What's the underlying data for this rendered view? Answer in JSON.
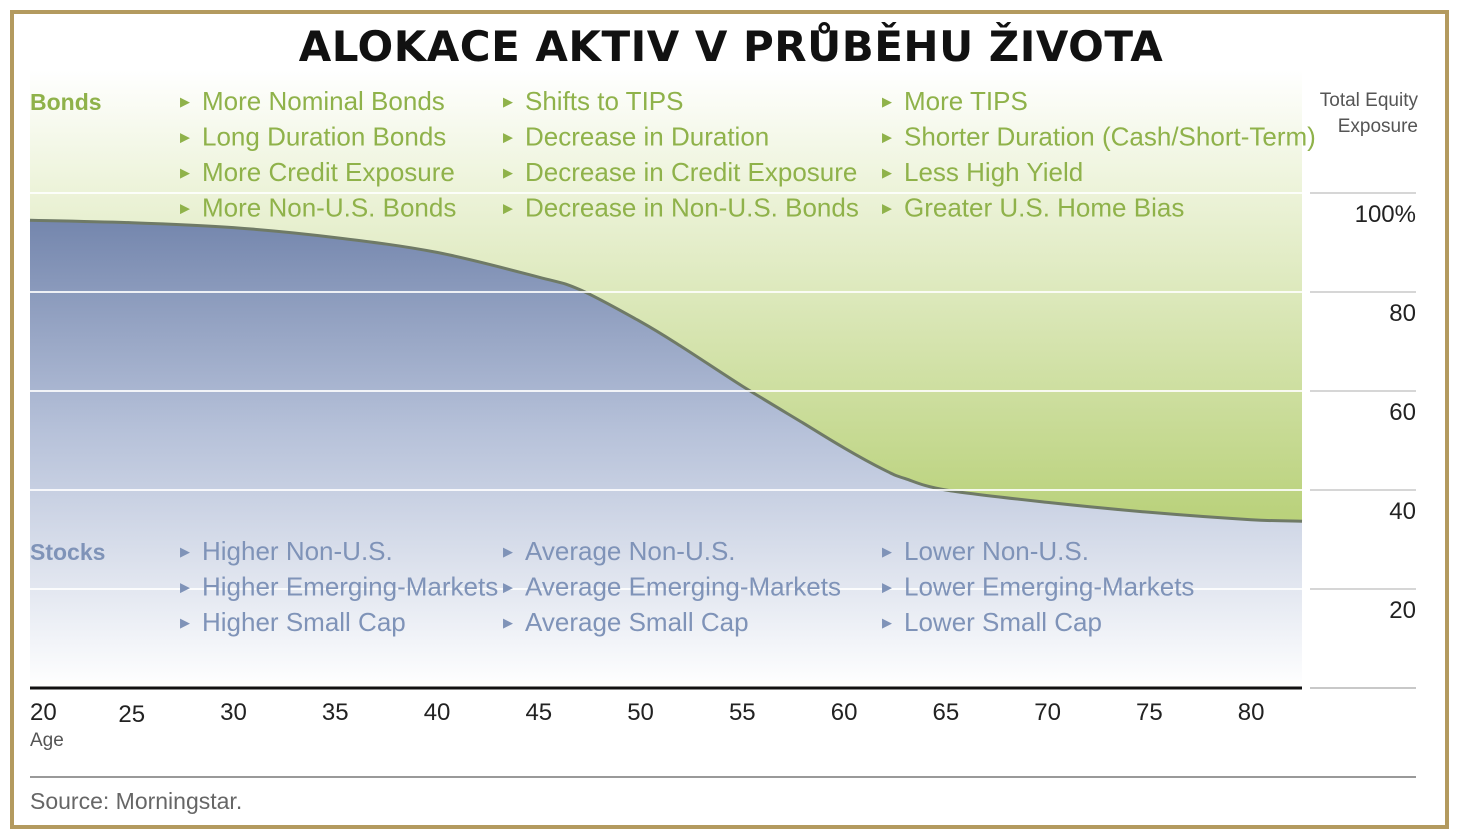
{
  "title": "ALOKACE AKTIV V PRŮBĚHU ŽIVOTA",
  "source": "Source: Morningstar.",
  "colors": {
    "bonds_text": "#8fb24a",
    "stocks_text": "#7f93b8",
    "border": "#b39a5f"
  },
  "chart_data": {
    "type": "area",
    "xlabel": "Age",
    "ylabel": "Total Equity Exposure",
    "x_ticks": [
      20,
      25,
      30,
      35,
      40,
      45,
      50,
      55,
      60,
      65,
      70,
      75,
      80
    ],
    "y_ticks": [
      {
        "value": 100,
        "label": "100%"
      },
      {
        "value": 80,
        "label": "80"
      },
      {
        "value": 60,
        "label": "60"
      },
      {
        "value": 40,
        "label": "40"
      },
      {
        "value": 20,
        "label": "20"
      }
    ],
    "xlim": [
      20,
      82.5
    ],
    "ylim": [
      0,
      100
    ],
    "x": [
      20,
      25,
      30,
      35,
      40,
      45,
      47,
      50,
      52,
      55,
      58,
      60,
      62,
      63,
      65,
      70,
      75,
      80,
      82.5
    ],
    "equity": [
      94.5,
      94,
      93,
      91,
      88,
      83,
      80.5,
      74,
      69,
      61,
      53.5,
      48.5,
      44,
      42.3,
      40,
      37.5,
      35.5,
      34,
      33.7
    ],
    "region_labels": {
      "bonds": "Bonds",
      "stocks": "Stocks"
    },
    "bond_notes": [
      [
        "More Nominal Bonds",
        "Long Duration Bonds",
        "More Credit Exposure",
        "More Non-U.S. Bonds"
      ],
      [
        "Shifts to TIPS",
        "Decrease in Duration",
        "Decrease in Credit Exposure",
        "Decrease in Non-U.S. Bonds"
      ],
      [
        "More TIPS",
        "Shorter Duration (Cash/Short-Term)",
        "Less High Yield",
        "Greater U.S. Home Bias"
      ]
    ],
    "stock_notes": [
      [
        "Higher Non-U.S.",
        "Higher Emerging-Markets",
        "Higher Small Cap"
      ],
      [
        "Average Non-U.S.",
        "Average Emerging-Markets",
        "Average Small Cap"
      ],
      [
        "Lower Non-U.S.",
        "Lower Emerging-Markets",
        "Lower Small Cap"
      ]
    ]
  }
}
